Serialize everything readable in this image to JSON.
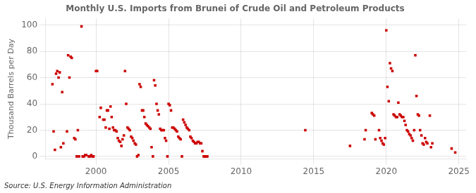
{
  "chart_data": {
    "type": "scatter",
    "title": "Monthly U.S. Imports from Brunei of Crude Oil and Petroleum Products",
    "ylabel": "Thousand Barrels per Day",
    "source": "Source: U.S. Energy Information Administration",
    "color": "#cc0000",
    "marker": "square",
    "grid": true,
    "xlim": [
      1996.5,
      2025.5
    ],
    "ylim": [
      -2,
      105
    ],
    "xticks": [
      2000,
      2005,
      2010,
      2015,
      2020,
      2025
    ],
    "yticks": [
      0,
      20,
      40,
      60,
      80,
      100
    ],
    "x": [
      1997.0,
      1997.08,
      1997.17,
      1997.25,
      1997.33,
      1997.42,
      1997.5,
      1997.58,
      1997.67,
      1997.75,
      1998.0,
      1998.08,
      1998.17,
      1998.25,
      1998.33,
      1998.5,
      1998.58,
      1998.67,
      1998.75,
      1998.83,
      1999.0,
      1999.08,
      1999.17,
      1999.25,
      1999.33,
      1999.5,
      1999.58,
      1999.67,
      1999.75,
      1999.83,
      2000.0,
      2000.08,
      2000.25,
      2000.33,
      2000.5,
      2000.58,
      2000.67,
      2000.75,
      2000.83,
      2000.92,
      2001.0,
      2001.08,
      2001.17,
      2001.25,
      2001.33,
      2001.42,
      2001.5,
      2001.58,
      2001.67,
      2001.75,
      2001.83,
      2001.92,
      2002.0,
      2002.08,
      2002.17,
      2002.25,
      2002.33,
      2002.42,
      2002.5,
      2002.58,
      2002.67,
      2002.75,
      2002.83,
      2002.92,
      2003.0,
      2003.08,
      2003.17,
      2003.25,
      2003.33,
      2003.42,
      2003.5,
      2003.58,
      2003.67,
      2003.75,
      2003.83,
      2003.92,
      2004.0,
      2004.08,
      2004.17,
      2004.25,
      2004.33,
      2004.42,
      2004.5,
      2004.58,
      2004.67,
      2004.75,
      2004.83,
      2004.92,
      2005.0,
      2005.08,
      2005.17,
      2005.25,
      2005.33,
      2005.42,
      2005.5,
      2005.58,
      2005.67,
      2005.75,
      2005.83,
      2005.92,
      2006.0,
      2006.08,
      2006.17,
      2006.25,
      2006.33,
      2006.42,
      2006.5,
      2006.58,
      2006.67,
      2006.75,
      2006.83,
      2006.92,
      2007.0,
      2007.08,
      2007.17,
      2007.25,
      2007.33,
      2007.42,
      2007.5,
      2007.58,
      2007.67,
      2014.42,
      2017.5,
      2018.5,
      2018.58,
      2019.0,
      2019.08,
      2019.17,
      2019.25,
      2019.5,
      2019.58,
      2019.67,
      2019.75,
      2019.83,
      2019.92,
      2020.0,
      2020.08,
      2020.17,
      2020.25,
      2020.33,
      2020.42,
      2020.5,
      2020.58,
      2020.67,
      2020.75,
      2020.83,
      2020.92,
      2021.0,
      2021.08,
      2021.17,
      2021.25,
      2021.33,
      2021.42,
      2021.5,
      2021.58,
      2021.67,
      2021.75,
      2021.83,
      2021.92,
      2022.0,
      2022.08,
      2022.17,
      2022.25,
      2022.33,
      2022.42,
      2022.5,
      2022.58,
      2022.67,
      2022.75,
      2022.83,
      2023.0,
      2023.08,
      2023.17,
      2024.5,
      2024.75
    ],
    "values": [
      55,
      19,
      5,
      63,
      65,
      60,
      64,
      7,
      49,
      10,
      19,
      77,
      60,
      76,
      75,
      14,
      13,
      0,
      20,
      0,
      99,
      0,
      0,
      1,
      1,
      0,
      0,
      1,
      0,
      0,
      65,
      65,
      30,
      37,
      28,
      28,
      22,
      35,
      35,
      21,
      38,
      30,
      22,
      20,
      20,
      19,
      14,
      12,
      11,
      8,
      13,
      16,
      65,
      40,
      22,
      21,
      20,
      15,
      14,
      12,
      10,
      9,
      0,
      1,
      55,
      53,
      35,
      35,
      30,
      25,
      24,
      23,
      22,
      21,
      7,
      0,
      58,
      54,
      40,
      35,
      32,
      21,
      20,
      20,
      20,
      14,
      12,
      0,
      40,
      39,
      35,
      22,
      22,
      21,
      20,
      19,
      15,
      14,
      13,
      0,
      28,
      26,
      24,
      22,
      21,
      20,
      15,
      14,
      12,
      11,
      10,
      10,
      11,
      11,
      10,
      10,
      4,
      0,
      0,
      0,
      0,
      20,
      8,
      13,
      20,
      33,
      32,
      31,
      13,
      20,
      14,
      12,
      10,
      9,
      14,
      96,
      53,
      42,
      71,
      67,
      65,
      32,
      31,
      30,
      30,
      41,
      32,
      31,
      30,
      30,
      27,
      24,
      20,
      19,
      17,
      16,
      14,
      12,
      20,
      77,
      46,
      32,
      31,
      20,
      16,
      10,
      9,
      14,
      11,
      10,
      31,
      7,
      10,
      6,
      3
    ]
  }
}
